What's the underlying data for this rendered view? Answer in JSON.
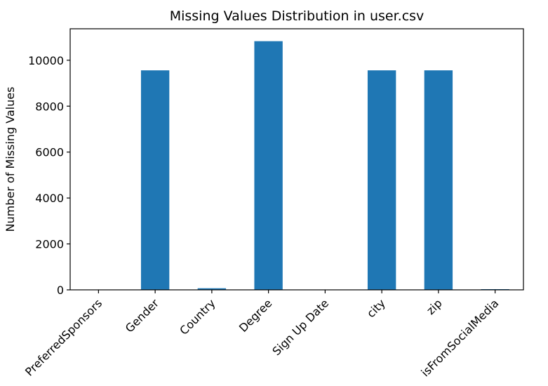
{
  "chart_data": {
    "type": "bar",
    "title": "Missing Values Distribution in user.csv",
    "xlabel": "",
    "ylabel": "Number of Missing Values",
    "categories": [
      "PreferredSponsors",
      "Gender",
      "Country",
      "Degree",
      "Sign Up Date",
      "city",
      "zip",
      "isFromSocialMedia"
    ],
    "values": [
      0,
      9560,
      70,
      10830,
      0,
      9560,
      9560,
      30
    ],
    "ylim": [
      0,
      11370
    ],
    "yticks": [
      0,
      2000,
      4000,
      6000,
      8000,
      10000
    ],
    "bar_color": "#1f77b4",
    "grid": false,
    "legend": "none"
  }
}
